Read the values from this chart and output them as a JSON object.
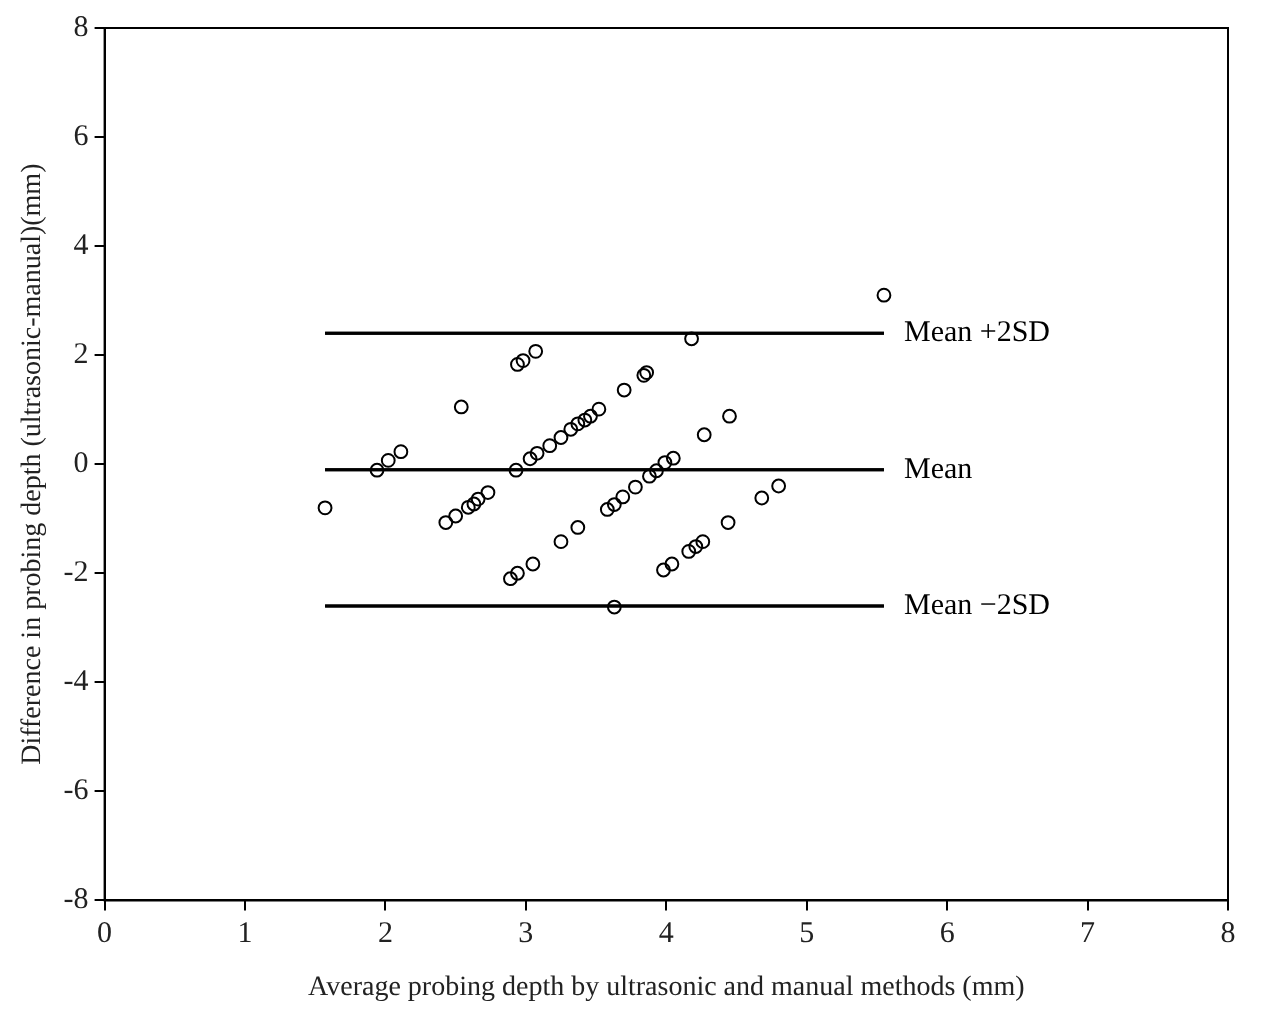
{
  "chart_data": {
    "type": "scatter",
    "xlabel": "Average probing depth by ultrasonic and manual methods (mm)",
    "ylabel": "Difference in probing depth (ultrasonic-manual)(mm)",
    "xlim": [
      0,
      8
    ],
    "xticks": [
      0,
      1,
      2,
      3,
      4,
      5,
      6,
      7,
      8
    ],
    "ylim": [
      -8,
      8
    ],
    "yticks": [
      -8,
      -6,
      -4,
      -2,
      0,
      2,
      4,
      6,
      8
    ],
    "grid": false,
    "legend": false,
    "marker": "circle",
    "series": [
      {
        "color": "#000000",
        "x": [
          1.57,
          1.94,
          2.02,
          2.11,
          2.54,
          2.94,
          2.98,
          3.07,
          2.43,
          2.5,
          2.59,
          2.63,
          2.66,
          2.73,
          2.93,
          3.03,
          3.08,
          3.17,
          3.25,
          3.32,
          3.37,
          2.89,
          2.94,
          3.05,
          3.25,
          3.37,
          4.18,
          3.42,
          3.46,
          3.52,
          3.7,
          3.84,
          3.86,
          4.27,
          4.45,
          3.58,
          3.63,
          3.69,
          3.78,
          3.88,
          3.93,
          3.99,
          4.05,
          4.68,
          4.8,
          3.98,
          4.04,
          4.16,
          4.21,
          4.26,
          4.44,
          3.63,
          5.55
        ],
        "values": [
          -0.8,
          -0.11,
          0.07,
          0.23,
          1.05,
          1.83,
          1.9,
          2.07,
          -1.07,
          -0.95,
          -0.79,
          -0.73,
          -0.64,
          -0.52,
          -0.11,
          0.1,
          0.2,
          0.34,
          0.49,
          0.64,
          0.74,
          -2.1,
          -2,
          -1.83,
          -1.42,
          -1.16,
          2.3,
          0.81,
          0.88,
          1.01,
          1.36,
          1.63,
          1.68,
          0.54,
          0.88,
          -0.83,
          -0.74,
          -0.6,
          -0.42,
          -0.22,
          -0.12,
          0.03,
          0.11,
          -0.62,
          -0.4,
          -1.94,
          -1.83,
          -1.6,
          -1.51,
          -1.42,
          -1.07,
          -2.62,
          3.1
        ]
      }
    ],
    "ref_lines": [
      {
        "axis": "y",
        "value": 2.4,
        "label": "Mean +2SD",
        "color": "#000000"
      },
      {
        "axis": "y",
        "value": -0.1,
        "label": "Mean",
        "color": "#000000"
      },
      {
        "axis": "y",
        "value": -2.6,
        "label": "Mean −2SD",
        "color": "#000000"
      }
    ]
  }
}
